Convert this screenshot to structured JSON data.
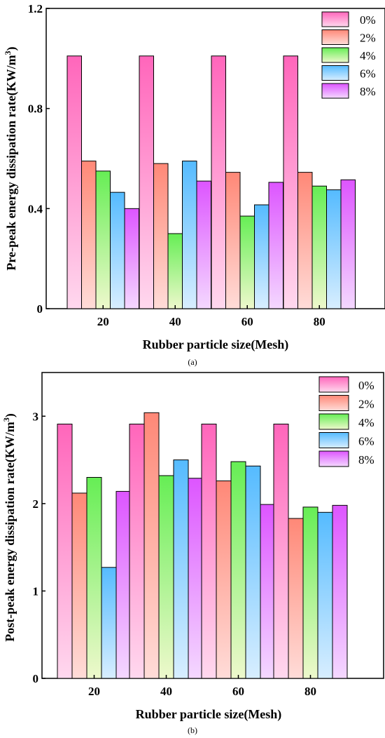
{
  "chart_data": [
    {
      "type": "bar",
      "panel_label": "(a)",
      "categories": [
        "20",
        "40",
        "60",
        "80"
      ],
      "series": [
        {
          "name": "0%",
          "values": [
            1.01,
            1.01,
            1.01,
            1.01
          ]
        },
        {
          "name": "2%",
          "values": [
            0.59,
            0.58,
            0.545,
            0.545
          ]
        },
        {
          "name": "4%",
          "values": [
            0.55,
            0.3,
            0.37,
            0.49
          ]
        },
        {
          "name": "6%",
          "values": [
            0.465,
            0.59,
            0.415,
            0.475
          ]
        },
        {
          "name": "8%",
          "values": [
            0.4,
            0.51,
            0.505,
            0.515
          ]
        }
      ],
      "xlabel": "Rubber particle size(Mesh)",
      "ylabel": "Pre-peak energy dissipation rate(KW/m",
      "ylabel_sup": "3",
      "ylabel_end": ")",
      "ylim": [
        0,
        1.2
      ],
      "yticks": [
        "0",
        "0.4",
        "0.8",
        "1.2"
      ],
      "ytick_values": [
        0,
        0.4,
        0.8,
        1.2
      ],
      "legend_position": "top-right",
      "grid": false
    },
    {
      "type": "bar",
      "panel_label": "(b)",
      "categories": [
        "20",
        "40",
        "60",
        "80"
      ],
      "series": [
        {
          "name": "0%",
          "values": [
            2.91,
            2.91,
            2.91,
            2.91
          ]
        },
        {
          "name": "2%",
          "values": [
            2.12,
            3.04,
            2.26,
            1.83
          ]
        },
        {
          "name": "4%",
          "values": [
            2.3,
            2.32,
            2.48,
            1.96
          ]
        },
        {
          "name": "6%",
          "values": [
            1.27,
            2.5,
            2.43,
            1.9
          ]
        },
        {
          "name": "8%",
          "values": [
            2.14,
            2.29,
            1.99,
            1.98
          ]
        }
      ],
      "xlabel": "Rubber particle size(Mesh)",
      "ylabel": "Post-peak energy dissipation rate(KW/m",
      "ylabel_sup": "3",
      "ylabel_end": ")",
      "ylim": [
        0,
        3.5
      ],
      "yticks": [
        "0",
        "1",
        "2",
        "3"
      ],
      "ytick_values": [
        0,
        1,
        2,
        3
      ],
      "legend_position": "top-right",
      "grid": false
    }
  ],
  "colors": {
    "series_top": [
      "#ff66bb",
      "#ff8877",
      "#66ee55",
      "#55bbff",
      "#dd55ff"
    ],
    "series_bottom": [
      "#ffd8ee",
      "#ffdcd8",
      "#eef8cc",
      "#d8eeff",
      "#f4d8ff"
    ]
  }
}
